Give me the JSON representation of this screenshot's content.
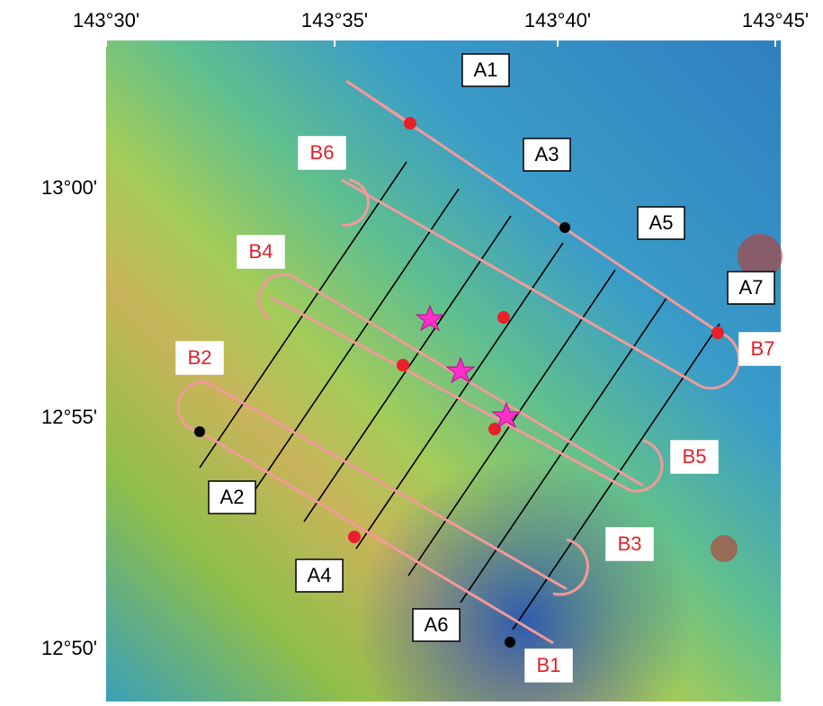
{
  "map": {
    "lon_labels": [
      "143°30'",
      "143°35'",
      "143°40'",
      "143°45'"
    ],
    "lat_labels": [
      "13°00'",
      "12°55'",
      "12°50'"
    ],
    "survey_lines_a": [
      "A1",
      "A2",
      "A3",
      "A4",
      "A5",
      "A6",
      "A7"
    ],
    "survey_lines_b": [
      "B1",
      "B2",
      "B3",
      "B4",
      "B5",
      "B6",
      "B7"
    ]
  }
}
